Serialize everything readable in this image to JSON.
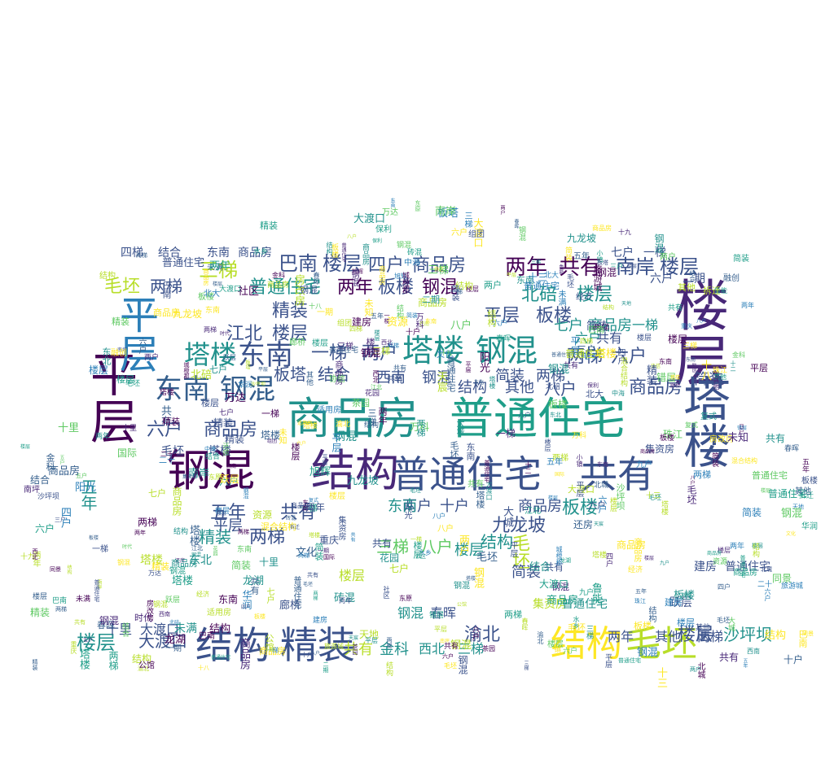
{
  "palette": [
    "#440154",
    "#3b528b",
    "#21918c",
    "#5ec962",
    "#b8de29",
    "#2c7fb8",
    "#355f8d",
    "#1f9e89",
    "#fde725",
    "#482878"
  ],
  "words": [
    {
      "text": "商品房",
      "color": "#21918c"
    },
    {
      "text": "普通住宅",
      "color": "#1f9e89"
    },
    {
      "text": "钢混",
      "color": "#440154"
    },
    {
      "text": "结构",
      "color": "#482878"
    },
    {
      "text": "普通住宅",
      "color": "#3b528b"
    },
    {
      "text": "共有",
      "color": "#3b528b"
    },
    {
      "text": "平层",
      "color": "#440154"
    },
    {
      "text": "楼层",
      "color": "#482878"
    },
    {
      "text": "塔楼",
      "color": "#3b528b"
    },
    {
      "text": "平层",
      "color": "#2c7fb8"
    },
    {
      "text": "结构",
      "color": "#3b528b"
    },
    {
      "text": "精装",
      "color": "#3b528b"
    },
    {
      "text": "结构",
      "color": "#fde725"
    },
    {
      "text": "毛坯",
      "color": "#b8de29"
    },
    {
      "text": "塔楼",
      "color": "#21918c"
    },
    {
      "text": "钢混",
      "color": "#21918c"
    },
    {
      "text": "东南",
      "color": "#355f8d"
    },
    {
      "text": "钢混",
      "color": "#355f8d"
    },
    {
      "text": "东南",
      "color": "#3b528b"
    },
    {
      "text": "塔楼",
      "color": "#21918c"
    },
    {
      "text": "两年",
      "color": "#440154"
    },
    {
      "text": "共有",
      "color": "#440154"
    },
    {
      "text": "南岸",
      "color": "#3b528b"
    },
    {
      "text": "楼层",
      "color": "#3b528b"
    },
    {
      "text": "巴南",
      "color": "#3b528b"
    },
    {
      "text": "楼层",
      "color": "#3b528b"
    },
    {
      "text": "四户",
      "color": "#3b528b"
    },
    {
      "text": "商品房",
      "color": "#3b528b"
    },
    {
      "text": "普通住宅",
      "color": "#21918c"
    },
    {
      "text": "两年",
      "color": "#440154"
    },
    {
      "text": "板楼",
      "color": "#3b528b"
    },
    {
      "text": "钢混",
      "color": "#440154"
    },
    {
      "text": "平层",
      "color": "#3b528b"
    },
    {
      "text": "板楼",
      "color": "#3b528b"
    },
    {
      "text": "精装",
      "color": "#3b528b"
    },
    {
      "text": "北碚",
      "color": "#21918c"
    },
    {
      "text": "楼层",
      "color": "#21918c"
    },
    {
      "text": "江北",
      "color": "#3b528b"
    },
    {
      "text": "楼层",
      "color": "#3b528b"
    },
    {
      "text": "三梯",
      "color": "#b8de29"
    },
    {
      "text": "毛坯",
      "color": "#b8de29"
    },
    {
      "text": "两梯",
      "color": "#3b528b"
    },
    {
      "text": "六户",
      "color": "#3b528b"
    },
    {
      "text": "商品房",
      "color": "#3b528b"
    },
    {
      "text": "两梯",
      "color": "#3b528b"
    },
    {
      "text": "六户",
      "color": "#3b528b"
    },
    {
      "text": "一梯",
      "color": "#3b528b"
    },
    {
      "text": "两户",
      "color": "#3b528b"
    },
    {
      "text": "板塔",
      "color": "#3b528b"
    },
    {
      "text": "结合",
      "color": "#3b528b"
    },
    {
      "text": "西南",
      "color": "#3b528b"
    },
    {
      "text": "钢混",
      "color": "#3b528b"
    },
    {
      "text": "简装",
      "color": "#3b528b"
    },
    {
      "text": "两梯",
      "color": "#3b528b"
    },
    {
      "text": "结构",
      "color": "#3b528b"
    },
    {
      "text": "其他",
      "color": "#3b528b"
    },
    {
      "text": "八户",
      "color": "#3b528b"
    },
    {
      "text": "商品房",
      "color": "#3b528b"
    },
    {
      "text": "简装",
      "color": "#3b528b"
    },
    {
      "text": "五年",
      "color": "#3b528b"
    },
    {
      "text": "共有",
      "color": "#3b528b"
    },
    {
      "text": "两梯",
      "color": "#3b528b"
    },
    {
      "text": "精装",
      "color": "#21918c"
    },
    {
      "text": "三梯",
      "color": "#5ec962"
    },
    {
      "text": "八户",
      "color": "#5ec962"
    },
    {
      "text": "九龙坡",
      "color": "#3b528b"
    },
    {
      "text": "两户",
      "color": "#3b528b"
    },
    {
      "text": "商品房",
      "color": "#3b528b"
    },
    {
      "text": "板楼",
      "color": "#21918c"
    },
    {
      "text": "东南",
      "color": "#21918c"
    },
    {
      "text": "十户",
      "color": "#3b528b"
    },
    {
      "text": "楼层",
      "color": "#21918c"
    },
    {
      "text": "毛坯",
      "color": "#b8de29"
    },
    {
      "text": "结构",
      "color": "#21918c"
    },
    {
      "text": "简装",
      "color": "#3b528b"
    },
    {
      "text": "渝北",
      "color": "#3b528b"
    },
    {
      "text": "楼层",
      "color": "#3b528b"
    },
    {
      "text": "沙坪坝",
      "color": "#21918c"
    },
    {
      "text": "楼层",
      "color": "#21918c"
    },
    {
      "text": "大渡口",
      "color": "#3b528b"
    },
    {
      "text": "五年",
      "color": "#21918c"
    },
    {
      "text": "平层",
      "color": "#3b528b"
    },
    {
      "text": "共有",
      "color": "#b8de29"
    },
    {
      "text": "金科",
      "color": "#21918c"
    },
    {
      "text": "西北",
      "color": "#21918c"
    },
    {
      "text": "三梯",
      "color": "#21918c"
    },
    {
      "text": "七户",
      "color": "#21918c"
    },
    {
      "text": "商品房",
      "color": "#21918c"
    },
    {
      "text": "一梯",
      "color": "#21918c"
    },
    {
      "text": "六户",
      "color": "#21918c"
    },
    {
      "text": "共有",
      "color": "#3b528b"
    },
    {
      "text": "钢混",
      "color": "#21918c"
    },
    {
      "text": "楼层",
      "color": "#b8de29"
    },
    {
      "text": "塔楼",
      "color": "#b8de29"
    },
    {
      "text": "东北",
      "color": "#21918c"
    },
    {
      "text": "钢混",
      "color": "#21918c"
    },
    {
      "text": "春晖",
      "color": "#3b528b"
    },
    {
      "text": "十里",
      "color": "#3b528b"
    },
    {
      "text": "大渡口",
      "color": "#3b528b"
    },
    {
      "text": "未满",
      "color": "#21918c"
    },
    {
      "text": "两年",
      "color": "#3b528b"
    },
    {
      "text": "其他",
      "color": "#3b528b"
    },
    {
      "text": "两梯",
      "color": "#3b528b"
    },
    {
      "text": "建房",
      "color": "#3b528b"
    },
    {
      "text": "普通住宅",
      "color": "#3b528b"
    },
    {
      "text": "集资房",
      "color": "#b8de29"
    },
    {
      "text": "普通住宅",
      "color": "#21918c"
    },
    {
      "text": "跃层",
      "color": "#3b528b"
    },
    {
      "text": "塔楼",
      "color": "#3b528b"
    },
    {
      "text": "毛坯",
      "color": "#3b528b"
    },
    {
      "text": "四梯",
      "color": "#3b528b"
    },
    {
      "text": "结合",
      "color": "#3b528b"
    },
    {
      "text": "东南",
      "color": "#3b528b"
    },
    {
      "text": "商品房",
      "color": "#3b528b"
    },
    {
      "text": "七户",
      "color": "#3b528b"
    },
    {
      "text": "一梯",
      "color": "#3b528b"
    },
    {
      "text": "六户",
      "color": "#3b528b"
    },
    {
      "text": "二期",
      "color": "#3b528b"
    },
    {
      "text": "巴南",
      "color": "#3b528b"
    },
    {
      "text": "融创",
      "color": "#3b528b"
    },
    {
      "text": "春晖",
      "color": "#3b528b"
    },
    {
      "text": "经济",
      "color": "#3b528b"
    },
    {
      "text": "适用房",
      "color": "#3b528b"
    },
    {
      "text": "房改房",
      "color": "#3b528b"
    },
    {
      "text": "保利",
      "color": "#3b528b"
    },
    {
      "text": "阳光",
      "color": "#3b528b"
    },
    {
      "text": "廊桥",
      "color": "#3b528b"
    },
    {
      "text": "时代",
      "color": "#3b528b"
    },
    {
      "text": "旭辉",
      "color": "#3b528b"
    },
    {
      "text": "城橙郡",
      "color": "#3b528b"
    },
    {
      "text": "龙湖",
      "color": "#3b528b"
    },
    {
      "text": "珠江",
      "color": "#b8de29"
    },
    {
      "text": "万科",
      "color": "#3b528b"
    },
    {
      "text": "鲁能",
      "color": "#3b528b"
    },
    {
      "text": "华润",
      "color": "#3b528b"
    },
    {
      "text": "中海",
      "color": "#3b528b"
    },
    {
      "text": "拆迁",
      "color": "#3b528b"
    },
    {
      "text": "还房",
      "color": "#3b528b"
    },
    {
      "text": "花园",
      "color": "#3b528b"
    },
    {
      "text": "国际",
      "color": "#3b528b"
    },
    {
      "text": "公馆",
      "color": "#3b528b"
    },
    {
      "text": "同景",
      "color": "#3b528b"
    },
    {
      "text": "十三",
      "color": "#3b528b"
    },
    {
      "text": "十八",
      "color": "#3b528b"
    },
    {
      "text": "十二",
      "color": "#3b528b"
    },
    {
      "text": "十九",
      "color": "#3b528b"
    },
    {
      "text": "二十",
      "color": "#3b528b"
    },
    {
      "text": "三户",
      "color": "#3b528b"
    },
    {
      "text": "四户",
      "color": "#3b528b"
    },
    {
      "text": "五户",
      "color": "#3b528b"
    },
    {
      "text": "八户",
      "color": "#3b528b"
    },
    {
      "text": "九户",
      "color": "#3b528b"
    },
    {
      "text": "社区",
      "color": "#3b528b"
    },
    {
      "text": "组团",
      "color": "#3b528b"
    },
    {
      "text": "天宸",
      "color": "#3b528b"
    },
    {
      "text": "茶园",
      "color": "#3b528b"
    },
    {
      "text": "南坪",
      "color": "#3b528b"
    },
    {
      "text": "小镇",
      "color": "#3b528b"
    },
    {
      "text": "水乡",
      "color": "#3b528b"
    },
    {
      "text": "北城",
      "color": "#3b528b"
    },
    {
      "text": "一期",
      "color": "#3b528b"
    },
    {
      "text": "旅游城",
      "color": "#3b528b"
    },
    {
      "text": "混合结构",
      "color": "#3b528b"
    },
    {
      "text": "砖混",
      "color": "#3b528b"
    },
    {
      "text": "错层",
      "color": "#3b528b"
    },
    {
      "text": "复式",
      "color": "#3b528b"
    },
    {
      "text": "重庆",
      "color": "#3b528b"
    },
    {
      "text": "北大",
      "color": "#3b528b"
    },
    {
      "text": "资源",
      "color": "#3b528b"
    },
    {
      "text": "未知",
      "color": "#3b528b"
    },
    {
      "text": "文化",
      "color": "#3b528b"
    },
    {
      "text": "万达",
      "color": "#3b528b"
    },
    {
      "text": "协信",
      "color": "#3b528b"
    },
    {
      "text": "东原",
      "color": "#3b528b"
    },
    {
      "text": "大城",
      "color": "#3b528b"
    },
    {
      "text": "天地",
      "color": "#3b528b"
    }
  ]
}
